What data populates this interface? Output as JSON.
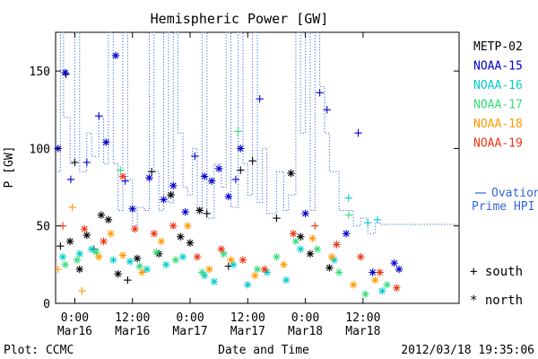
{
  "chart_data": {
    "type": "scatter",
    "title": "Hemispheric Power [GW]",
    "ylabel": "P [GW]",
    "xlabel": "Date and Time",
    "ylim": [
      0,
      175
    ],
    "yticks": [
      0,
      50,
      100,
      150
    ],
    "xlim": [
      "2012-03-15T20:00",
      "2012-03-19T08:00"
    ],
    "xticks": [
      {
        "t": "2012-03-16T00:00",
        "time": "0:00",
        "date": "Mar16"
      },
      {
        "t": "2012-03-16T12:00",
        "time": "12:00",
        "date": "Mar16"
      },
      {
        "t": "2012-03-17T00:00",
        "time": "0:00",
        "date": "Mar17"
      },
      {
        "t": "2012-03-17T12:00",
        "time": "12:00",
        "date": "Mar17"
      },
      {
        "t": "2012-03-18T00:00",
        "time": "0:00",
        "date": "Mar18"
      },
      {
        "t": "2012-03-18T12:00",
        "time": "12:00",
        "date": "Mar18"
      }
    ],
    "grid": false,
    "legend_position": "right",
    "marker_legend": [
      {
        "symbol": "+",
        "label": "south"
      },
      {
        "symbol": "*",
        "label": "north"
      }
    ],
    "series": [
      {
        "name": "METP-02",
        "color": "#000000",
        "points": [
          [
            "2012-03-15T21:00",
            37,
            "+"
          ],
          [
            "2012-03-15T22:10",
            148,
            "+"
          ],
          [
            "2012-03-15T23:00",
            40,
            "*"
          ],
          [
            "2012-03-16T00:00",
            91,
            "+"
          ],
          [
            "2012-03-16T01:00",
            22,
            "*"
          ],
          [
            "2012-03-16T02:30",
            44,
            "*"
          ],
          [
            "2012-03-16T04:00",
            35,
            "+"
          ],
          [
            "2012-03-16T05:30",
            57,
            "*"
          ],
          [
            "2012-03-16T07:00",
            54,
            "*"
          ],
          [
            "2012-03-16T09:00",
            19,
            "*"
          ],
          [
            "2012-03-16T11:00",
            15,
            "+"
          ],
          [
            "2012-03-16T13:00",
            29,
            "*"
          ],
          [
            "2012-03-16T16:00",
            85,
            "+"
          ],
          [
            "2012-03-16T17:30",
            32,
            "*"
          ],
          [
            "2012-03-16T20:00",
            70,
            "*"
          ],
          [
            "2012-03-16T22:00",
            43,
            "*"
          ],
          [
            "2012-03-17T00:00",
            39,
            "*"
          ],
          [
            "2012-03-17T02:00",
            60,
            "*"
          ],
          [
            "2012-03-17T03:30",
            58,
            "+"
          ],
          [
            "2012-03-17T08:00",
            24,
            "+"
          ],
          [
            "2012-03-17T10:30",
            86,
            "+"
          ],
          [
            "2012-03-17T13:00",
            92,
            "+"
          ],
          [
            "2012-03-17T18:00",
            55,
            "+"
          ],
          [
            "2012-03-17T21:00",
            84,
            "*"
          ],
          [
            "2012-03-17T23:00",
            43,
            "*"
          ],
          [
            "2012-03-18T01:00",
            32,
            "*"
          ],
          [
            "2012-03-18T05:00",
            23,
            "*"
          ]
        ]
      },
      {
        "name": "NOAA-15",
        "color": "#0000cc",
        "points": [
          [
            "2012-03-15T20:30",
            100,
            "*"
          ],
          [
            "2012-03-15T22:00",
            149,
            "*"
          ],
          [
            "2012-03-15T23:10",
            80,
            "+"
          ],
          [
            "2012-03-16T02:30",
            91,
            "+"
          ],
          [
            "2012-03-16T05:00",
            121,
            "+"
          ],
          [
            "2012-03-16T06:30",
            104,
            "*"
          ],
          [
            "2012-03-16T08:30",
            160,
            "*"
          ],
          [
            "2012-03-16T10:30",
            79,
            "+"
          ],
          [
            "2012-03-16T12:00",
            61,
            "*"
          ],
          [
            "2012-03-16T15:30",
            81,
            "*"
          ],
          [
            "2012-03-16T18:30",
            67,
            "*"
          ],
          [
            "2012-03-16T20:30",
            76,
            "*"
          ],
          [
            "2012-03-16T23:00",
            59,
            "*"
          ],
          [
            "2012-03-17T01:00",
            95,
            "+"
          ],
          [
            "2012-03-17T03:00",
            82,
            "*"
          ],
          [
            "2012-03-17T04:30",
            79,
            "*"
          ],
          [
            "2012-03-17T06:00",
            87,
            "*"
          ],
          [
            "2012-03-17T08:00",
            69,
            "*"
          ],
          [
            "2012-03-17T09:30",
            80,
            "+"
          ],
          [
            "2012-03-17T10:30",
            100,
            "*"
          ],
          [
            "2012-03-17T14:30",
            132,
            "+"
          ],
          [
            "2012-03-18T00:00",
            58,
            "*"
          ],
          [
            "2012-03-18T03:00",
            136,
            "+"
          ],
          [
            "2012-03-18T04:30",
            125,
            "+"
          ],
          [
            "2012-03-18T08:30",
            45,
            "*"
          ],
          [
            "2012-03-18T11:00",
            110,
            "+"
          ],
          [
            "2012-03-18T14:00",
            20,
            "*"
          ],
          [
            "2012-03-18T18:30",
            26,
            "*"
          ],
          [
            "2012-03-18T19:30",
            22,
            "*"
          ]
        ]
      },
      {
        "name": "NOAA-16",
        "color": "#00cccc",
        "points": [
          [
            "2012-03-15T21:30",
            30,
            "*"
          ],
          [
            "2012-03-16T01:00",
            32,
            "*"
          ],
          [
            "2012-03-16T03:30",
            35,
            "*"
          ],
          [
            "2012-03-16T08:00",
            28,
            "*"
          ],
          [
            "2012-03-16T11:30",
            27,
            "*"
          ],
          [
            "2012-03-16T15:00",
            22,
            "*"
          ],
          [
            "2012-03-16T19:00",
            25,
            "*"
          ],
          [
            "2012-03-16T22:30",
            30,
            "*"
          ],
          [
            "2012-03-17T03:00",
            18,
            "*"
          ],
          [
            "2012-03-17T05:00",
            14,
            "*"
          ],
          [
            "2012-03-17T09:00",
            25,
            "*"
          ],
          [
            "2012-03-17T12:00",
            12,
            "*"
          ],
          [
            "2012-03-17T16:00",
            20,
            "*"
          ],
          [
            "2012-03-17T20:00",
            15,
            "*"
          ],
          [
            "2012-03-17T23:00",
            35,
            "*"
          ],
          [
            "2012-03-18T06:00",
            28,
            "*"
          ],
          [
            "2012-03-18T09:00",
            68,
            "+"
          ],
          [
            "2012-03-18T13:00",
            52,
            "+"
          ],
          [
            "2012-03-18T15:00",
            54,
            "+"
          ],
          [
            "2012-03-18T16:00",
            8,
            "*"
          ]
        ]
      },
      {
        "name": "NOAA-17",
        "color": "#33dd77",
        "points": [
          [
            "2012-03-15T22:00",
            25,
            "*"
          ],
          [
            "2012-03-16T00:30",
            28,
            "*"
          ],
          [
            "2012-03-16T04:30",
            33,
            "*"
          ],
          [
            "2012-03-16T09:30",
            86,
            "+"
          ],
          [
            "2012-03-16T13:30",
            24,
            "*"
          ],
          [
            "2012-03-16T17:00",
            33,
            "*"
          ],
          [
            "2012-03-16T21:00",
            28,
            "*"
          ],
          [
            "2012-03-17T02:30",
            20,
            "*"
          ],
          [
            "2012-03-17T07:00",
            32,
            "*"
          ],
          [
            "2012-03-17T10:00",
            111,
            "+"
          ],
          [
            "2012-03-17T14:00",
            22,
            "*"
          ],
          [
            "2012-03-17T18:00",
            30,
            "*"
          ],
          [
            "2012-03-17T22:00",
            40,
            "*"
          ],
          [
            "2012-03-18T02:30",
            35,
            "*"
          ],
          [
            "2012-03-18T07:00",
            20,
            "*"
          ],
          [
            "2012-03-18T09:00",
            57,
            "+"
          ],
          [
            "2012-03-18T12:30",
            6,
            "*"
          ],
          [
            "2012-03-18T17:00",
            12,
            "*"
          ]
        ]
      },
      {
        "name": "NOAA-18",
        "color": "#ff9900",
        "points": [
          [
            "2012-03-15T20:30",
            22,
            "+"
          ],
          [
            "2012-03-15T23:30",
            62,
            "+"
          ],
          [
            "2012-03-16T01:30",
            8,
            "+"
          ],
          [
            "2012-03-16T05:00",
            30,
            "*"
          ],
          [
            "2012-03-16T07:30",
            45,
            "*"
          ],
          [
            "2012-03-16T10:00",
            31,
            "*"
          ],
          [
            "2012-03-16T14:00",
            20,
            "*"
          ],
          [
            "2012-03-16T18:00",
            40,
            "*"
          ],
          [
            "2012-03-16T23:30",
            50,
            "*"
          ],
          [
            "2012-03-17T04:00",
            22,
            "*"
          ],
          [
            "2012-03-17T08:30",
            28,
            "*"
          ],
          [
            "2012-03-17T13:30",
            18,
            "*"
          ],
          [
            "2012-03-17T19:30",
            25,
            "*"
          ],
          [
            "2012-03-18T01:30",
            42,
            "*"
          ],
          [
            "2012-03-18T05:30",
            30,
            "*"
          ],
          [
            "2012-03-18T10:00",
            12,
            "*"
          ],
          [
            "2012-03-18T14:30",
            15,
            "*"
          ]
        ]
      },
      {
        "name": "NOAA-19",
        "color": "#ee3311",
        "points": [
          [
            "2012-03-15T21:30",
            50,
            "+"
          ],
          [
            "2012-03-16T02:00",
            48,
            "*"
          ],
          [
            "2012-03-16T06:00",
            40,
            "*"
          ],
          [
            "2012-03-16T10:00",
            82,
            "*"
          ],
          [
            "2012-03-16T12:30",
            48,
            "*"
          ],
          [
            "2012-03-16T16:30",
            45,
            "*"
          ],
          [
            "2012-03-16T20:30",
            50,
            "*"
          ],
          [
            "2012-03-17T01:30",
            30,
            "*"
          ],
          [
            "2012-03-17T06:30",
            35,
            "*"
          ],
          [
            "2012-03-17T11:00",
            28,
            "*"
          ],
          [
            "2012-03-17T15:30",
            22,
            "*"
          ],
          [
            "2012-03-17T21:30",
            45,
            "*"
          ],
          [
            "2012-03-18T02:00",
            50,
            "+"
          ],
          [
            "2012-03-18T06:30",
            38,
            "*"
          ],
          [
            "2012-03-18T11:30",
            30,
            "*"
          ],
          [
            "2012-03-18T15:30",
            20,
            "*"
          ],
          [
            "2012-03-18T19:00",
            10,
            "*"
          ]
        ]
      }
    ],
    "ovation": {
      "label_line1": "Ovation",
      "label_line2": "Prime HPI",
      "color": "#3366dd",
      "steps": [
        [
          "2012-03-15T20:00",
          85
        ],
        [
          "2012-03-15T21:00",
          175
        ],
        [
          "2012-03-15T21:40",
          120
        ],
        [
          "2012-03-15T23:00",
          90
        ],
        [
          "2012-03-16T00:00",
          175
        ],
        [
          "2012-03-16T01:00",
          85
        ],
        [
          "2012-03-16T02:30",
          110
        ],
        [
          "2012-03-16T03:30",
          95
        ],
        [
          "2012-03-16T05:00",
          120
        ],
        [
          "2012-03-16T06:00",
          90
        ],
        [
          "2012-03-16T07:00",
          175
        ],
        [
          "2012-03-16T08:00",
          90
        ],
        [
          "2012-03-16T09:00",
          60
        ],
        [
          "2012-03-16T10:00",
          175
        ],
        [
          "2012-03-16T11:00",
          80
        ],
        [
          "2012-03-16T12:00",
          50
        ],
        [
          "2012-03-16T13:00",
          62
        ],
        [
          "2012-03-16T14:30",
          60
        ],
        [
          "2012-03-16T15:30",
          175
        ],
        [
          "2012-03-16T16:30",
          85
        ],
        [
          "2012-03-16T17:30",
          60
        ],
        [
          "2012-03-16T18:30",
          175
        ],
        [
          "2012-03-16T19:30",
          65
        ],
        [
          "2012-03-16T20:30",
          175
        ],
        [
          "2012-03-16T21:30",
          110
        ],
        [
          "2012-03-16T22:30",
          75
        ],
        [
          "2012-03-16T23:30",
          70
        ],
        [
          "2012-03-17T00:30",
          100
        ],
        [
          "2012-03-17T01:30",
          60
        ],
        [
          "2012-03-17T02:30",
          175
        ],
        [
          "2012-03-17T03:30",
          55
        ],
        [
          "2012-03-17T05:00",
          90
        ],
        [
          "2012-03-17T06:30",
          75
        ],
        [
          "2012-03-17T07:30",
          175
        ],
        [
          "2012-03-17T08:30",
          62
        ],
        [
          "2012-03-17T10:00",
          175
        ],
        [
          "2012-03-17T11:00",
          90
        ],
        [
          "2012-03-17T12:00",
          70
        ],
        [
          "2012-03-17T13:00",
          175
        ],
        [
          "2012-03-17T14:00",
          65
        ],
        [
          "2012-03-17T15:00",
          100
        ],
        [
          "2012-03-17T16:00",
          58
        ],
        [
          "2012-03-17T18:00",
          85
        ],
        [
          "2012-03-17T19:30",
          60
        ],
        [
          "2012-03-17T20:30",
          70
        ],
        [
          "2012-03-17T22:00",
          175
        ],
        [
          "2012-03-17T23:00",
          110
        ],
        [
          "2012-03-18T00:00",
          175
        ],
        [
          "2012-03-18T01:00",
          60
        ],
        [
          "2012-03-18T02:00",
          175
        ],
        [
          "2012-03-18T03:00",
          140
        ],
        [
          "2012-03-18T04:00",
          110
        ],
        [
          "2012-03-18T05:00",
          85
        ],
        [
          "2012-03-18T07:00",
          60
        ],
        [
          "2012-03-18T10:00",
          50
        ],
        [
          "2012-03-18T11:30",
          55
        ],
        [
          "2012-03-18T13:00",
          45
        ],
        [
          "2012-03-18T14:30",
          52
        ],
        [
          "2012-03-18T15:30",
          51
        ],
        [
          "2012-03-19T08:00",
          51
        ]
      ]
    },
    "footer_left": "Plot: CCMC",
    "footer_right": "2012/03/18 19:35:06"
  }
}
